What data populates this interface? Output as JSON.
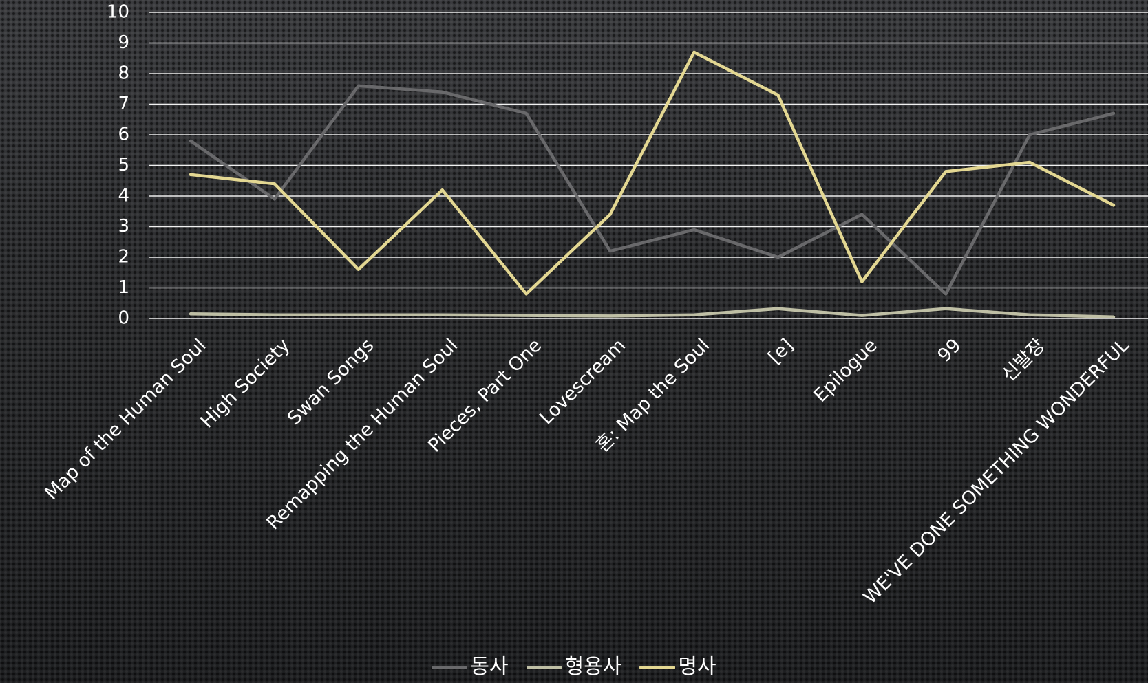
{
  "chart_data": {
    "type": "line",
    "categories": [
      "Map of the Human Soul",
      "High Society",
      "Swan Songs",
      "Remapping the Human Soul",
      "Pieces, Part One",
      "Lovescream",
      "혼: Map the Soul",
      "[e]",
      "Epilogue",
      "99",
      "신발장",
      "WE'VE DONE SOMETHING WONDERFUL"
    ],
    "series": [
      {
        "name": "동사",
        "color": "#69696b",
        "values": [
          5.8,
          3.9,
          7.6,
          7.4,
          6.7,
          2.2,
          2.9,
          2.0,
          3.4,
          0.8,
          6.0,
          6.7
        ]
      },
      {
        "name": "형용사",
        "color": "#bfbfa5",
        "values": [
          0.15,
          0.12,
          0.12,
          0.12,
          0.1,
          0.08,
          0.12,
          0.32,
          0.1,
          0.32,
          0.12,
          0.05
        ]
      },
      {
        "name": "명사",
        "color": "#e3d792",
        "values": [
          4.7,
          4.4,
          1.6,
          4.2,
          0.8,
          3.4,
          8.7,
          7.3,
          1.2,
          4.8,
          5.1,
          3.7
        ]
      }
    ],
    "y_ticks": [
      "0",
      "1",
      "2",
      "3",
      "4",
      "5",
      "6",
      "7",
      "8",
      "9",
      "10"
    ],
    "ylim": [
      0,
      10
    ],
    "grid": true,
    "legend_position": "bottom",
    "title": "",
    "xlabel": "",
    "ylabel": ""
  }
}
